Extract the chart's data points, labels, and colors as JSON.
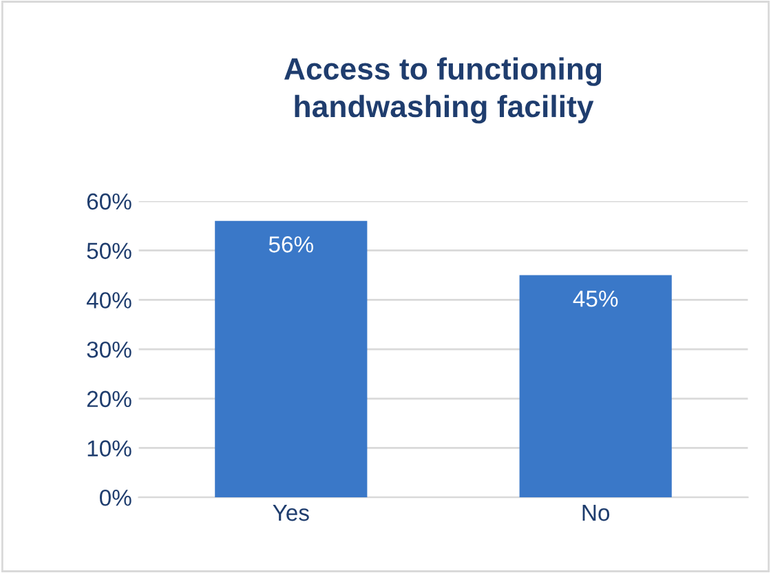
{
  "chart_data": {
    "type": "bar",
    "title": "Access to functioning\nhandwashing facility",
    "categories": [
      "Yes",
      "No"
    ],
    "values": [
      56,
      45
    ],
    "color": "#3a78c8",
    "value_labels": [
      "56%",
      "45%"
    ],
    "ylim": [
      0,
      60
    ],
    "yticks": [
      {
        "value": 0,
        "label": "0%"
      },
      {
        "value": 10,
        "label": "10%"
      },
      {
        "value": 20,
        "label": "20%"
      },
      {
        "value": 30,
        "label": "30%"
      },
      {
        "value": 40,
        "label": "40%"
      },
      {
        "value": 50,
        "label": "50%"
      },
      {
        "value": 60,
        "label": "60%"
      }
    ],
    "grid": "y",
    "legend": false
  }
}
